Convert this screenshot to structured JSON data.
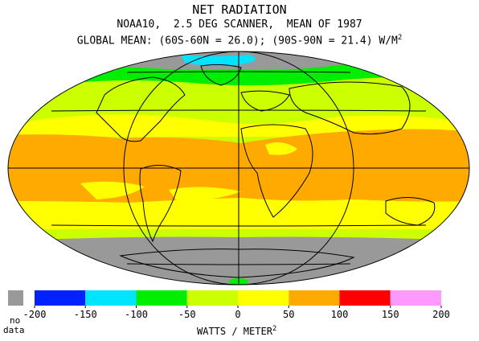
{
  "title": "NET RADIATION",
  "subtitle": "NOAA10,  2.5 DEG SCANNER,  MEAN OF 1987",
  "global_mean": {
    "text": "GLOBAL MEAN: (60S-60N = 26.0); (90S-90N = 21.4) W/M",
    "exponent": "2"
  },
  "legend": {
    "no_data_line1": "no",
    "no_data_line2": "data",
    "no_data_color": "#999999",
    "units": "WATTS / METER",
    "units_exponent": "2",
    "ticks": [
      "-200",
      "-150",
      "-100",
      "-50",
      "0",
      "50",
      "100",
      "150",
      "200"
    ],
    "bins": [
      {
        "from": -200,
        "to": -150,
        "color": "#0022ff"
      },
      {
        "from": -150,
        "to": -100,
        "color": "#00e5ff"
      },
      {
        "from": -100,
        "to": -50,
        "color": "#00ee00"
      },
      {
        "from": -50,
        "to": 0,
        "color": "#ccff00"
      },
      {
        "from": 0,
        "to": 50,
        "color": "#ffff00"
      },
      {
        "from": 50,
        "to": 100,
        "color": "#ffaa00"
      },
      {
        "from": 100,
        "to": 150,
        "color": "#ff0000"
      },
      {
        "from": 150,
        "to": 200,
        "color": "#ff99ff"
      }
    ]
  },
  "map_colors": {
    "outside_frame": "#ffffff",
    "no_data": "#999999",
    "very_negative": "#00e5ff",
    "negative": "#00ee00",
    "slightly_negative": "#ccff00",
    "slightly_positive": "#ffff00",
    "positive": "#ffaa00",
    "lines": "#000000"
  }
}
